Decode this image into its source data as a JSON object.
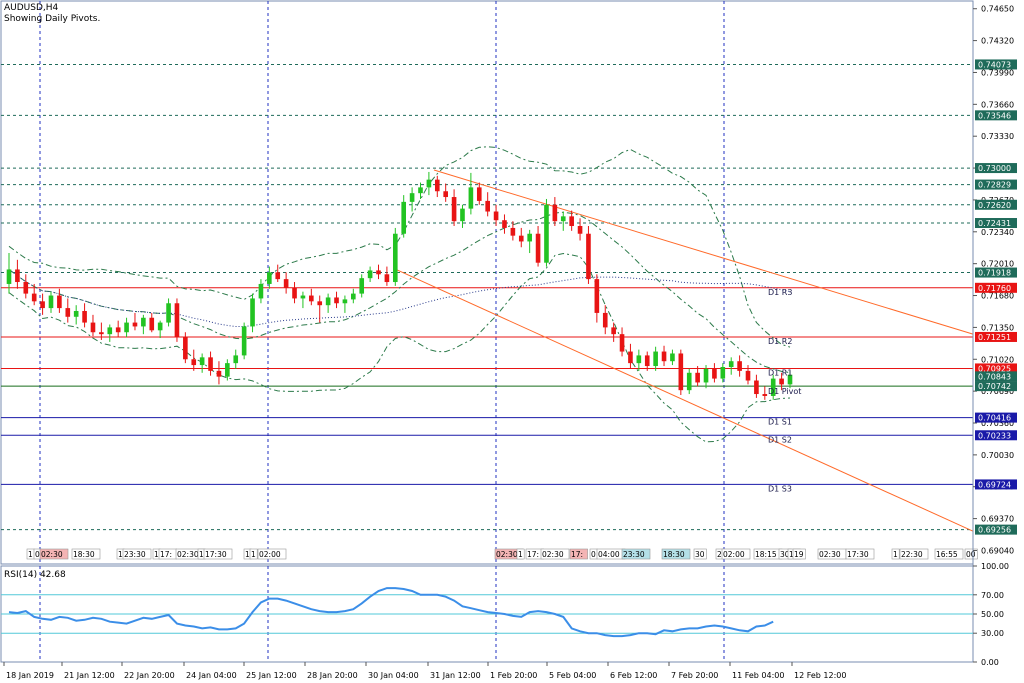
{
  "header": {
    "symbol": "AUDUSD,H4",
    "subtitle": "Showing Daily Pivots."
  },
  "colors": {
    "up_candle": "#22c322",
    "down_candle": "#e81414",
    "pivot_red": "#e81414",
    "pivot_blue": "#1a1aa8",
    "pivot_green": "#166c1a",
    "horizontal_teal": "#1f6b5a",
    "channel": "#ff6a2a",
    "bollinger": "#2c7a4a",
    "ma_dotted": "#2a3c8c",
    "rsi_line": "#3b8ee8",
    "rsi_levels": "#52c8d8",
    "vgrid": "#2030c0",
    "price_box_dark": "#1f6b5a",
    "price_box_red": "#e81414",
    "price_box_blue": "#1a1aa8"
  },
  "chart_data": [
    {
      "type": "candlestick",
      "title": "AUDUSD,H4",
      "subtitle": "Showing Daily Pivots.",
      "ylim": [
        0.689,
        0.7473
      ],
      "y_ticks": [
        "0.74650",
        "0.74320",
        "0.73990",
        "0.73660",
        "0.73330",
        "0.73000",
        "0.72670",
        "0.72340",
        "0.72010",
        "0.71680",
        "0.71350",
        "0.71020",
        "0.70690",
        "0.70360",
        "0.70030",
        "0.69700",
        "0.69370",
        "0.69040"
      ],
      "x_ticks": [
        "18 Jan 2019",
        "21 Jan 12:00",
        "22 Jan 20:00",
        "24 Jan 04:00",
        "25 Jan 12:00",
        "28 Jan 20:00",
        "30 Jan 04:00",
        "31 Jan 12:00",
        "1 Feb 20:00",
        "5 Feb 04:00",
        "6 Feb 12:00",
        "7 Feb 20:00",
        "11 Feb 04:00",
        "12 Feb 12:00"
      ],
      "price_labels": [
        {
          "value": 0.74073,
          "text": "0.74073",
          "style": "dark"
        },
        {
          "value": 0.73546,
          "text": "0.73546",
          "style": "dark"
        },
        {
          "value": 0.73,
          "text": "0.73000",
          "style": "dark"
        },
        {
          "value": 0.72829,
          "text": "0.72829",
          "style": "dark"
        },
        {
          "value": 0.7262,
          "text": "0.72620",
          "style": "dark"
        },
        {
          "value": 0.72431,
          "text": "0.72431",
          "style": "dark"
        },
        {
          "value": 0.71918,
          "text": "0.71918",
          "style": "dark"
        },
        {
          "value": 0.7176,
          "text": "0.71760",
          "style": "red"
        },
        {
          "value": 0.71251,
          "text": "0.71251",
          "style": "red"
        },
        {
          "value": 0.70925,
          "text": "0.70925",
          "style": "red"
        },
        {
          "value": 0.70843,
          "text": "0.70843",
          "style": "dark"
        },
        {
          "value": 0.70742,
          "text": "0.70742",
          "style": "dark"
        },
        {
          "value": 0.70416,
          "text": "0.70416",
          "style": "blue"
        },
        {
          "value": 0.70233,
          "text": "0.70233",
          "style": "blue"
        },
        {
          "value": 0.69724,
          "text": "0.69724",
          "style": "blue"
        },
        {
          "value": 0.69256,
          "text": "0.69256",
          "style": "dark"
        }
      ],
      "pivots": [
        {
          "label": "D1 R3",
          "value": 0.7176,
          "color": "red"
        },
        {
          "label": "D1 R2",
          "value": 0.71251,
          "color": "red"
        },
        {
          "label": "D1 R1",
          "value": 0.70925,
          "color": "red"
        },
        {
          "label": "D1 Pivot",
          "value": 0.70742,
          "color": "green"
        },
        {
          "label": "D1 S1",
          "value": 0.70416,
          "color": "blue"
        },
        {
          "label": "D1 S2",
          "value": 0.70233,
          "color": "blue"
        },
        {
          "label": "D1 S3",
          "value": 0.69724,
          "color": "blue"
        }
      ],
      "horizontal_levels": [
        0.74073,
        0.73546,
        0.73,
        0.72829,
        0.7262,
        0.72431,
        0.71918,
        0.69256
      ],
      "candles": [
        [
          0.718,
          0.7212,
          0.717,
          0.7195
        ],
        [
          0.7195,
          0.7205,
          0.7175,
          0.7182
        ],
        [
          0.7182,
          0.719,
          0.7165,
          0.717
        ],
        [
          0.717,
          0.718,
          0.7158,
          0.7162
        ],
        [
          0.7162,
          0.717,
          0.7148,
          0.7155
        ],
        [
          0.7155,
          0.7172,
          0.715,
          0.7168
        ],
        [
          0.7168,
          0.7175,
          0.715,
          0.7155
        ],
        [
          0.7155,
          0.7165,
          0.714,
          0.7146
        ],
        [
          0.7146,
          0.7158,
          0.7138,
          0.7152
        ],
        [
          0.7152,
          0.716,
          0.7135,
          0.714
        ],
        [
          0.714,
          0.7148,
          0.7126,
          0.713
        ],
        [
          0.713,
          0.714,
          0.7122,
          0.7128
        ],
        [
          0.7128,
          0.7138,
          0.712,
          0.7135
        ],
        [
          0.7135,
          0.7142,
          0.7125,
          0.713
        ],
        [
          0.713,
          0.7145,
          0.7125,
          0.714
        ],
        [
          0.714,
          0.715,
          0.7132,
          0.7136
        ],
        [
          0.7136,
          0.7148,
          0.7128,
          0.7145
        ],
        [
          0.7145,
          0.715,
          0.713,
          0.7132
        ],
        [
          0.7132,
          0.7142,
          0.7124,
          0.714
        ],
        [
          0.714,
          0.7165,
          0.7136,
          0.716
        ],
        [
          0.716,
          0.7165,
          0.712,
          0.7125
        ],
        [
          0.7125,
          0.713,
          0.7098,
          0.7102
        ],
        [
          0.7102,
          0.7112,
          0.709,
          0.7096
        ],
        [
          0.7096,
          0.7108,
          0.7088,
          0.7104
        ],
        [
          0.7104,
          0.711,
          0.7085,
          0.709
        ],
        [
          0.709,
          0.71,
          0.7076,
          0.7084
        ],
        [
          0.7084,
          0.7102,
          0.708,
          0.7098
        ],
        [
          0.7098,
          0.7112,
          0.7092,
          0.7106
        ],
        [
          0.7106,
          0.714,
          0.7102,
          0.7136
        ],
        [
          0.7136,
          0.717,
          0.713,
          0.7165
        ],
        [
          0.7165,
          0.7185,
          0.716,
          0.718
        ],
        [
          0.718,
          0.7198,
          0.7175,
          0.7192
        ],
        [
          0.7192,
          0.72,
          0.7182,
          0.7185
        ],
        [
          0.7185,
          0.7192,
          0.717,
          0.7176
        ],
        [
          0.7176,
          0.7182,
          0.716,
          0.7165
        ],
        [
          0.7165,
          0.7172,
          0.7155,
          0.7168
        ],
        [
          0.7168,
          0.7175,
          0.7158,
          0.7162
        ],
        [
          0.7162,
          0.7168,
          0.714,
          0.7158
        ],
        [
          0.7158,
          0.717,
          0.715,
          0.7166
        ],
        [
          0.7166,
          0.7172,
          0.7155,
          0.716
        ],
        [
          0.716,
          0.7168,
          0.715,
          0.7164
        ],
        [
          0.7164,
          0.7175,
          0.716,
          0.717
        ],
        [
          0.717,
          0.719,
          0.7166,
          0.7186
        ],
        [
          0.7186,
          0.7198,
          0.7182,
          0.7194
        ],
        [
          0.7194,
          0.72,
          0.7185,
          0.719
        ],
        [
          0.719,
          0.7198,
          0.7178,
          0.7182
        ],
        [
          0.7182,
          0.7238,
          0.7178,
          0.7232
        ],
        [
          0.7232,
          0.7272,
          0.7228,
          0.7265
        ],
        [
          0.7265,
          0.728,
          0.7255,
          0.7274
        ],
        [
          0.7274,
          0.7285,
          0.7268,
          0.728
        ],
        [
          0.728,
          0.7296,
          0.7272,
          0.7288
        ],
        [
          0.7288,
          0.7292,
          0.727,
          0.7276
        ],
        [
          0.7276,
          0.7284,
          0.7265,
          0.727
        ],
        [
          0.727,
          0.7278,
          0.724,
          0.7245
        ],
        [
          0.7245,
          0.7262,
          0.7238,
          0.7258
        ],
        [
          0.7258,
          0.7295,
          0.7252,
          0.728
        ],
        [
          0.728,
          0.7285,
          0.7262,
          0.7266
        ],
        [
          0.7266,
          0.7275,
          0.725,
          0.7255
        ],
        [
          0.7255,
          0.7262,
          0.724,
          0.7246
        ],
        [
          0.7246,
          0.7252,
          0.7232,
          0.7238
        ],
        [
          0.7238,
          0.7245,
          0.7225,
          0.723
        ],
        [
          0.723,
          0.7238,
          0.7218,
          0.7224
        ],
        [
          0.7224,
          0.7236,
          0.7212,
          0.7232
        ],
        [
          0.7232,
          0.724,
          0.7198,
          0.7202
        ],
        [
          0.7202,
          0.7268,
          0.7198,
          0.7262
        ],
        [
          0.7262,
          0.727,
          0.724,
          0.7245
        ],
        [
          0.7245,
          0.7255,
          0.7235,
          0.725
        ],
        [
          0.725,
          0.7256,
          0.7235,
          0.724
        ],
        [
          0.724,
          0.7248,
          0.7225,
          0.7232
        ],
        [
          0.7232,
          0.724,
          0.718,
          0.7185
        ],
        [
          0.7185,
          0.719,
          0.714,
          0.715
        ],
        [
          0.715,
          0.7158,
          0.7128,
          0.7135
        ],
        [
          0.7135,
          0.714,
          0.712,
          0.7128
        ],
        [
          0.7128,
          0.7135,
          0.7105,
          0.711
        ],
        [
          0.711,
          0.7118,
          0.7092,
          0.7098
        ],
        [
          0.7098,
          0.7112,
          0.709,
          0.7106
        ],
        [
          0.7106,
          0.711,
          0.709,
          0.7095
        ],
        [
          0.7095,
          0.7115,
          0.709,
          0.711
        ],
        [
          0.711,
          0.7116,
          0.7095,
          0.71
        ],
        [
          0.71,
          0.7112,
          0.7096,
          0.7108
        ],
        [
          0.7108,
          0.7112,
          0.7065,
          0.707
        ],
        [
          0.707,
          0.7092,
          0.7066,
          0.7088
        ],
        [
          0.7088,
          0.7095,
          0.7074,
          0.7078
        ],
        [
          0.7078,
          0.7096,
          0.7072,
          0.7092
        ],
        [
          0.7092,
          0.7098,
          0.7078,
          0.7082
        ],
        [
          0.7082,
          0.7098,
          0.7078,
          0.7094
        ],
        [
          0.7094,
          0.7104,
          0.7086,
          0.71
        ],
        [
          0.71,
          0.7106,
          0.7084,
          0.709
        ],
        [
          0.709,
          0.7096,
          0.7076,
          0.708
        ],
        [
          0.708,
          0.7086,
          0.7062,
          0.7066
        ],
        [
          0.7066,
          0.7074,
          0.706,
          0.7064
        ],
        [
          0.7064,
          0.7086,
          0.706,
          0.7082
        ],
        [
          0.7082,
          0.7088,
          0.707,
          0.7076
        ],
        [
          0.7076,
          0.709,
          0.7072,
          0.7086
        ]
      ]
    },
    {
      "type": "line",
      "title": "RSI(14) 42.68",
      "ylim": [
        0,
        100
      ],
      "y_ticks": [
        "100.00",
        "70.00",
        "50.00",
        "30.00",
        "0.00"
      ],
      "levels": [
        70,
        50,
        30
      ],
      "values": [
        52,
        51,
        53,
        47,
        45,
        44,
        47,
        46,
        43,
        44,
        46,
        45,
        42,
        41,
        40,
        43,
        46,
        45,
        47,
        49,
        40,
        38,
        37,
        35,
        36,
        34,
        34,
        35,
        40,
        52,
        62,
        66,
        66,
        64,
        61,
        58,
        55,
        53,
        52,
        52,
        53,
        55,
        61,
        68,
        74,
        77,
        77,
        76,
        74,
        70,
        70,
        70,
        68,
        64,
        58,
        56,
        54,
        52,
        51,
        50,
        48,
        47,
        52,
        53,
        52,
        50,
        47,
        35,
        32,
        30,
        30,
        28,
        27,
        27,
        28,
        30,
        30,
        29,
        33,
        32,
        34,
        35,
        35,
        37,
        38,
        37,
        35,
        33,
        32,
        37,
        38,
        42
      ]
    }
  ],
  "rsi_label": "RSI(14) 42.68",
  "time_tags": [
    "1",
    "0",
    "02:30",
    "18:30",
    "1",
    "23:30",
    "1",
    "17:",
    "02:30",
    "1",
    "17:30",
    "1",
    "1",
    "02:00",
    "02:30",
    "1",
    "17:",
    "02:30",
    "17:",
    "0",
    "04:00",
    "23:30",
    "18:30",
    "30",
    "2",
    "02:00",
    "18:15",
    "30",
    "15",
    "19",
    "02:30",
    "17:30",
    "1",
    "22:30",
    "16:55",
    "00"
  ]
}
